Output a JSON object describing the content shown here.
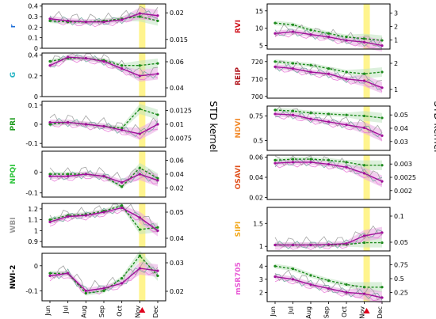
{
  "figure": {
    "right_axis_label": "STD kernel",
    "event_marker_color": "#e0001b",
    "highlight_color": "#fff27a",
    "colors": {
      "mean": "#a0109a",
      "mean_fill": "#e7a6e1",
      "alt": "#1c8a1c",
      "alt_fill": "#bfe3bf",
      "thin_pink": "#e774d6",
      "thin_teal": "#6aa89a",
      "thin_grey": "#9a9a9a"
    }
  },
  "chart_data": [
    {
      "type": "line",
      "title": "r",
      "label_color": "#1f6fd8",
      "x": [
        "Jun",
        "Jul",
        "Aug",
        "Sep",
        "Oct",
        "Nov",
        "Dec"
      ],
      "ylim": [
        0.0,
        0.42
      ],
      "yticks": [
        0.0,
        0.1,
        0.2,
        0.3,
        0.4
      ],
      "y2ticks": [
        0.015,
        0.02
      ],
      "series": [
        {
          "values": [
            0.28,
            0.26,
            0.25,
            0.25,
            0.27,
            0.33,
            0.31
          ]
        },
        {
          "values": [
            0.26,
            0.25,
            0.25,
            0.26,
            0.28,
            0.3,
            0.26
          ]
        }
      ]
    },
    {
      "type": "line",
      "title": "G",
      "label_color": "#23b3c3",
      "x": [
        "Jun",
        "Jul",
        "Aug",
        "Sep",
        "Oct",
        "Nov",
        "Dec"
      ],
      "ylim": [
        0.0,
        0.42
      ],
      "yticks": [
        0.0,
        0.2,
        0.4
      ],
      "y2ticks": [
        0.04,
        0.06
      ],
      "series": [
        {
          "values": [
            0.3,
            0.38,
            0.37,
            0.34,
            0.27,
            0.2,
            0.22
          ]
        },
        {
          "values": [
            0.34,
            0.37,
            0.37,
            0.35,
            0.3,
            0.3,
            0.32
          ]
        }
      ]
    },
    {
      "type": "line",
      "title": "PRI",
      "label_color": "#1e9c1e",
      "x": [
        "Jun",
        "Jul",
        "Aug",
        "Sep",
        "Oct",
        "Nov",
        "Dec"
      ],
      "ylim": [
        -0.12,
        0.12
      ],
      "yticks": [
        -0.1,
        0.0,
        0.1
      ],
      "y2ticks": [
        0.0075,
        0.01,
        0.0125
      ],
      "series": [
        {
          "values": [
            0.01,
            0.01,
            0.0,
            -0.01,
            -0.03,
            -0.05,
            0.0
          ]
        },
        {
          "values": [
            0.0,
            0.01,
            0.0,
            -0.01,
            -0.02,
            0.08,
            0.05
          ]
        }
      ]
    },
    {
      "type": "line",
      "title": "NPQI",
      "label_color": "#2cc43a",
      "x": [
        "Jun",
        "Jul",
        "Aug",
        "Sep",
        "Oct",
        "Nov",
        "Dec"
      ],
      "ylim": [
        -0.12,
        0.1
      ],
      "yticks": [
        -0.1,
        0.0
      ],
      "y2ticks": [
        0.02,
        0.04,
        0.06
      ],
      "series": [
        {
          "values": [
            -0.02,
            -0.02,
            -0.01,
            -0.02,
            -0.05,
            -0.01,
            -0.04
          ]
        },
        {
          "values": [
            -0.01,
            -0.01,
            -0.01,
            -0.02,
            -0.07,
            0.02,
            -0.03
          ]
        }
      ]
    },
    {
      "type": "line",
      "title": "WBI",
      "label_color": "#9a9a9a",
      "x": [
        "Jun",
        "Jul",
        "Aug",
        "Sep",
        "Oct",
        "Nov",
        "Dec"
      ],
      "ylim": [
        0.85,
        1.25
      ],
      "yticks": [
        0.9,
        1.0,
        1.1,
        1.2
      ],
      "y2ticks": [
        0.04,
        0.05
      ],
      "series": [
        {
          "values": [
            1.08,
            1.13,
            1.14,
            1.17,
            1.21,
            1.12,
            1.0
          ]
        },
        {
          "values": [
            1.1,
            1.14,
            1.15,
            1.18,
            1.23,
            1.01,
            1.03
          ]
        }
      ]
    },
    {
      "type": "line",
      "title": "NWI-2",
      "label_color": "#000000",
      "x": [
        "Jun",
        "Jul",
        "Aug",
        "Sep",
        "Oct",
        "Nov",
        "Dec"
      ],
      "ylim": [
        -0.14,
        0.05
      ],
      "yticks": [
        -0.1,
        0.0
      ],
      "y2ticks": [
        0.02,
        0.03
      ],
      "series": [
        {
          "values": [
            -0.04,
            -0.03,
            -0.1,
            -0.09,
            -0.07,
            -0.01,
            -0.02
          ]
        },
        {
          "values": [
            -0.03,
            -0.03,
            -0.11,
            -0.1,
            -0.05,
            0.04,
            -0.04
          ]
        }
      ]
    },
    {
      "type": "line",
      "title": "RVI",
      "label_color": "#d0121c",
      "x": [
        "Jun",
        "Jul",
        "Aug",
        "Sep",
        "Oct",
        "Nov",
        "Dec"
      ],
      "ylim": [
        4,
        17
      ],
      "yticks": [
        5,
        10,
        15
      ],
      "y2ticks": [
        1,
        2,
        3
      ],
      "series": [
        {
          "values": [
            8.5,
            9.0,
            8.2,
            7.5,
            6.5,
            6.0,
            5.0
          ]
        },
        {
          "values": [
            11.5,
            11.0,
            9.5,
            8.5,
            7.5,
            7.0,
            6.5
          ]
        }
      ]
    },
    {
      "type": "line",
      "title": "REIP",
      "label_color": "#b0141c",
      "x": [
        "Jun",
        "Jul",
        "Aug",
        "Sep",
        "Oct",
        "Nov",
        "Dec"
      ],
      "ylim": [
        699,
        724
      ],
      "yticks": [
        700,
        710,
        720
      ],
      "y2ticks": [
        1,
        2
      ],
      "series": [
        {
          "values": [
            717,
            716,
            714,
            713,
            710,
            709,
            705
          ]
        },
        {
          "values": [
            720,
            719,
            718,
            716,
            714,
            713,
            714
          ]
        }
      ]
    },
    {
      "type": "line",
      "title": "NDVI",
      "label_color": "#f28a2a",
      "x": [
        "Jun",
        "Jul",
        "Aug",
        "Sep",
        "Oct",
        "Nov",
        "Dec"
      ],
      "ylim": [
        0.4,
        0.85
      ],
      "yticks": [
        0.5,
        0.75
      ],
      "y2ticks": [
        0.03,
        0.04,
        0.05
      ],
      "series": [
        {
          "values": [
            0.77,
            0.76,
            0.72,
            0.69,
            0.66,
            0.63,
            0.55
          ]
        },
        {
          "values": [
            0.81,
            0.8,
            0.78,
            0.77,
            0.76,
            0.75,
            0.73
          ]
        }
      ]
    },
    {
      "type": "line",
      "title": "OSAVI",
      "label_color": "#e0501c",
      "x": [
        "Jun",
        "Jul",
        "Aug",
        "Sep",
        "Oct",
        "Nov",
        "Dec"
      ],
      "ylim": [
        0.018,
        0.062
      ],
      "yticks": [
        0.02,
        0.04,
        0.06
      ],
      "y2ticks": [
        0.002,
        0.0025,
        0.003
      ],
      "series": [
        {
          "values": [
            0.054,
            0.055,
            0.055,
            0.053,
            0.05,
            0.044,
            0.036
          ]
        },
        {
          "values": [
            0.057,
            0.058,
            0.058,
            0.057,
            0.055,
            0.052,
            0.052
          ]
        }
      ]
    },
    {
      "type": "line",
      "title": "SIPI",
      "label_color": "#f2a81c",
      "x": [
        "Jun",
        "Jul",
        "Aug",
        "Sep",
        "Oct",
        "Nov",
        "Dec"
      ],
      "ylim": [
        0.9,
        1.85
      ],
      "yticks": [
        1.0,
        1.5
      ],
      "y2ticks": [
        0.05,
        0.1
      ],
      "series": [
        {
          "values": [
            1.03,
            1.03,
            1.03,
            1.04,
            1.06,
            1.23,
            1.3
          ]
        },
        {
          "values": [
            1.03,
            1.03,
            1.03,
            1.03,
            1.04,
            1.08,
            1.08
          ]
        }
      ]
    },
    {
      "type": "line",
      "title": "mSR705",
      "label_color": "#e85ad5",
      "x": [
        "Jun",
        "Jul",
        "Aug",
        "Sep",
        "Oct",
        "Nov",
        "Dec"
      ],
      "ylim": [
        1.3,
        4.8
      ],
      "yticks": [
        2,
        3,
        4
      ],
      "y2ticks": [
        0.25,
        0.5,
        0.75
      ],
      "series": [
        {
          "values": [
            3.2,
            3.0,
            2.6,
            2.3,
            2.0,
            1.9,
            1.6
          ]
        },
        {
          "values": [
            4.0,
            3.8,
            3.3,
            2.9,
            2.6,
            2.4,
            2.4
          ]
        }
      ]
    }
  ]
}
